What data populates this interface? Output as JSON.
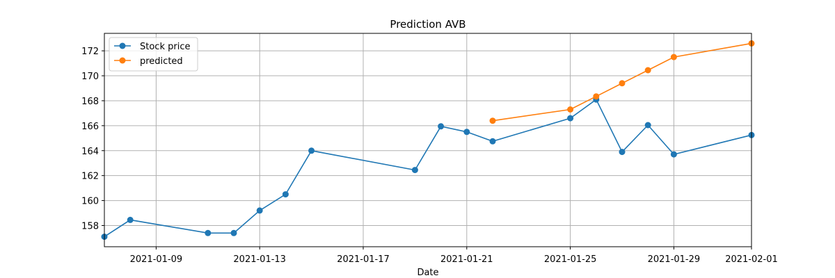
{
  "chart_data": {
    "type": "line",
    "title": "Prediction AVB",
    "xlabel": "Date",
    "ylabel": "",
    "xlim": [
      "2021-01-07",
      "2021-02-01"
    ],
    "ylim": [
      156.3,
      173.4
    ],
    "grid": true,
    "legend_position": "upper-left",
    "x_ticks": [
      "2021-01-09",
      "2021-01-13",
      "2021-01-17",
      "2021-01-21",
      "2021-01-25",
      "2021-01-29",
      "2021-02-01"
    ],
    "y_ticks": [
      158,
      160,
      162,
      164,
      166,
      168,
      170,
      172
    ],
    "series": [
      {
        "name": "Stock price",
        "color": "#1f77b4",
        "marker": "circle",
        "x": [
          "2021-01-07",
          "2021-01-08",
          "2021-01-11",
          "2021-01-12",
          "2021-01-13",
          "2021-01-14",
          "2021-01-15",
          "2021-01-19",
          "2021-01-20",
          "2021-01-21",
          "2021-01-22",
          "2021-01-25",
          "2021-01-26",
          "2021-01-27",
          "2021-01-28",
          "2021-01-29",
          "2021-02-01"
        ],
        "values": [
          157.1,
          158.45,
          157.4,
          157.4,
          159.2,
          160.5,
          164.0,
          162.45,
          165.95,
          165.5,
          164.75,
          166.6,
          168.1,
          163.9,
          166.05,
          163.7,
          165.25
        ]
      },
      {
        "name": "predicted",
        "color": "#ff7f0e",
        "marker": "circle",
        "x": [
          "2021-01-22",
          "2021-01-25",
          "2021-01-26",
          "2021-01-27",
          "2021-01-28",
          "2021-01-29",
          "2021-02-01"
        ],
        "values": [
          166.4,
          167.3,
          168.35,
          169.4,
          170.45,
          171.5,
          172.6
        ]
      }
    ]
  }
}
